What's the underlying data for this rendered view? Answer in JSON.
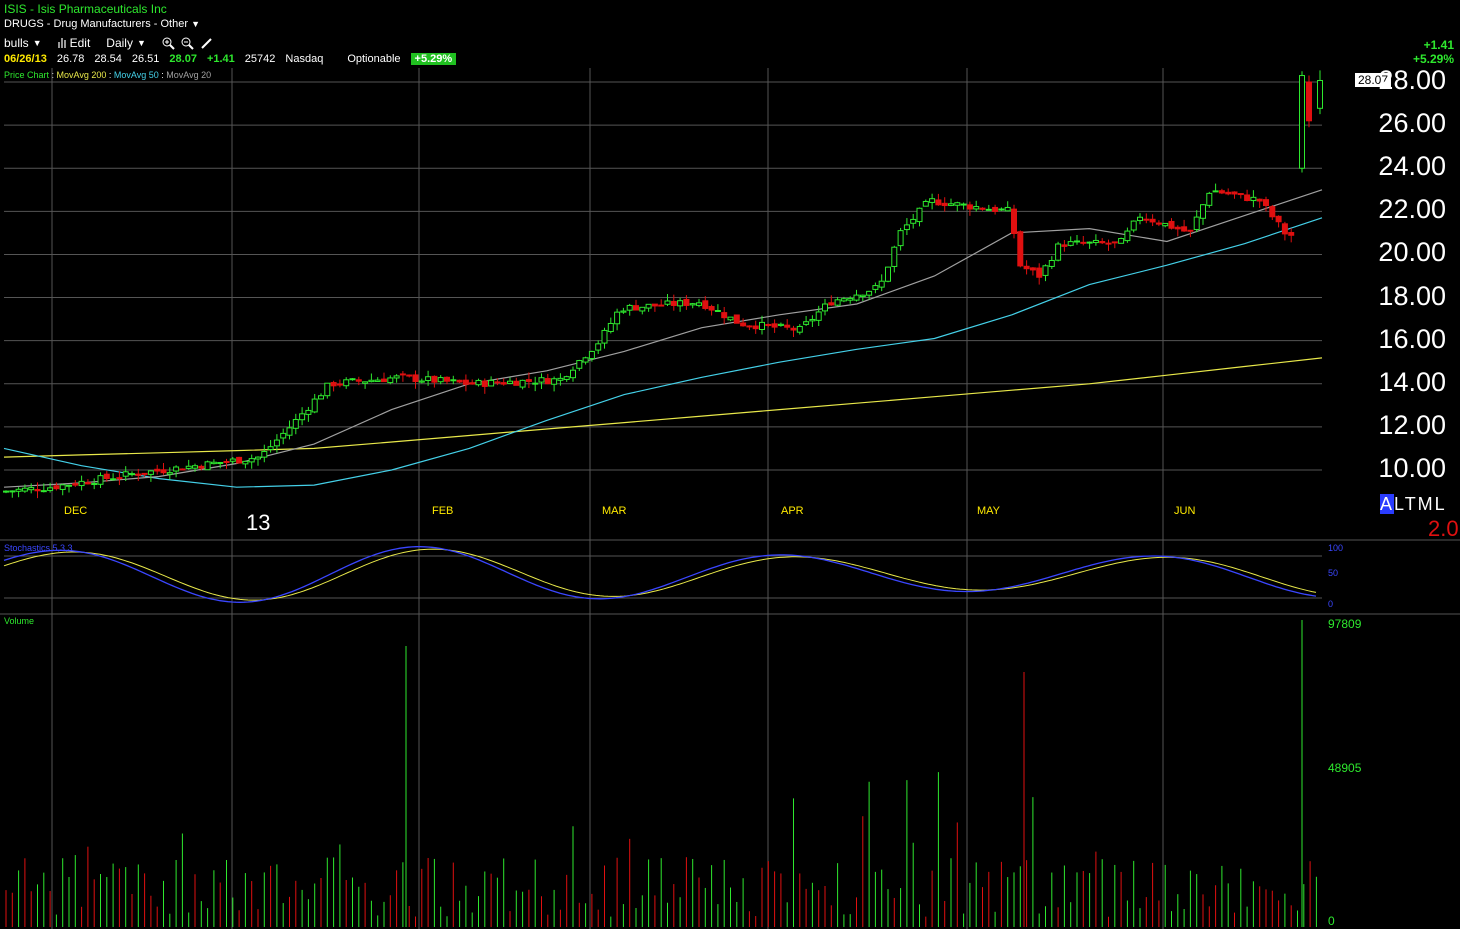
{
  "header": {
    "symbol": "ISIS",
    "separator": " - ",
    "company": "Isis Pharmaceuticals Inc",
    "industry": "DRUGS - Drug Manufacturers - Other",
    "caret": "▼"
  },
  "toolbar": {
    "list_name": "bulls",
    "edit_label": "Edit",
    "period_label": "Daily"
  },
  "quote": {
    "date": "06/26/13",
    "open": "26.78",
    "high": "28.54",
    "low": "26.51",
    "close": "28.07",
    "change": "+1.41",
    "volume": "25742",
    "exchange": "Nasdaq",
    "optionable": "Optionable",
    "pct_change": "+5.29%"
  },
  "indicators": {
    "price_chart": "Price Chart",
    "ma200": "MovAvg 200",
    "ma50": "MovAvg 50",
    "ma20": "MovAvg 20",
    "sep": " : "
  },
  "top_right": {
    "change": "+1.41",
    "pct": "+5.29%"
  },
  "price_tag": "28.07",
  "colors": {
    "up": "#2ee82e",
    "down": "#e01010",
    "ma200": "#e8e84a",
    "ma50": "#44d0e8",
    "ma20": "#a0a0a0",
    "stoch_k": "#3a46ff",
    "stoch_d": "#e8e84a",
    "grid": "#555555"
  },
  "chart_data": [
    {
      "type": "candlestick",
      "y_ticks": [
        "10.00",
        "12.00",
        "14.00",
        "16.00",
        "18.00",
        "20.00",
        "22.00",
        "24.00",
        "26.00",
        "28.00"
      ],
      "ylim": [
        8.6,
        28.6
      ],
      "x_month_labels": [
        "DEC",
        "FEB",
        "MAR",
        "APR",
        "MAY",
        "JUN"
      ],
      "year_label": "13",
      "series": [
        {
          "name": "MovAvg 200",
          "values": [
            10.6,
            10.7,
            10.8,
            10.9,
            11.0,
            11.3,
            11.6,
            11.9,
            12.2,
            12.5,
            12.8,
            13.1,
            13.4,
            13.7,
            14.0,
            14.4,
            14.8,
            15.2
          ]
        },
        {
          "name": "MovAvg 50",
          "values": [
            11.0,
            10.2,
            9.6,
            9.2,
            9.3,
            10.0,
            11.0,
            12.3,
            13.5,
            14.3,
            15.0,
            15.6,
            16.1,
            17.2,
            18.6,
            19.5,
            20.5,
            21.7
          ]
        },
        {
          "name": "MovAvg 20",
          "values": [
            9.2,
            9.4,
            9.7,
            10.3,
            11.2,
            12.8,
            14.0,
            14.6,
            15.5,
            16.6,
            17.2,
            17.7,
            19.0,
            21.0,
            21.2,
            20.6,
            21.8,
            23.0
          ]
        }
      ],
      "last_candle": {
        "open": 26.78,
        "high": 28.54,
        "low": 26.51,
        "close": 28.07
      }
    },
    {
      "type": "line",
      "title": "Stochastics 5,3,3",
      "y_ticks": [
        "100",
        "50",
        "0"
      ],
      "ylim": [
        0,
        100
      ]
    },
    {
      "type": "bar",
      "title": "Volume",
      "y_ticks": [
        "97809",
        "48905",
        "0"
      ],
      "ylim": [
        0,
        97809
      ]
    }
  ]
}
